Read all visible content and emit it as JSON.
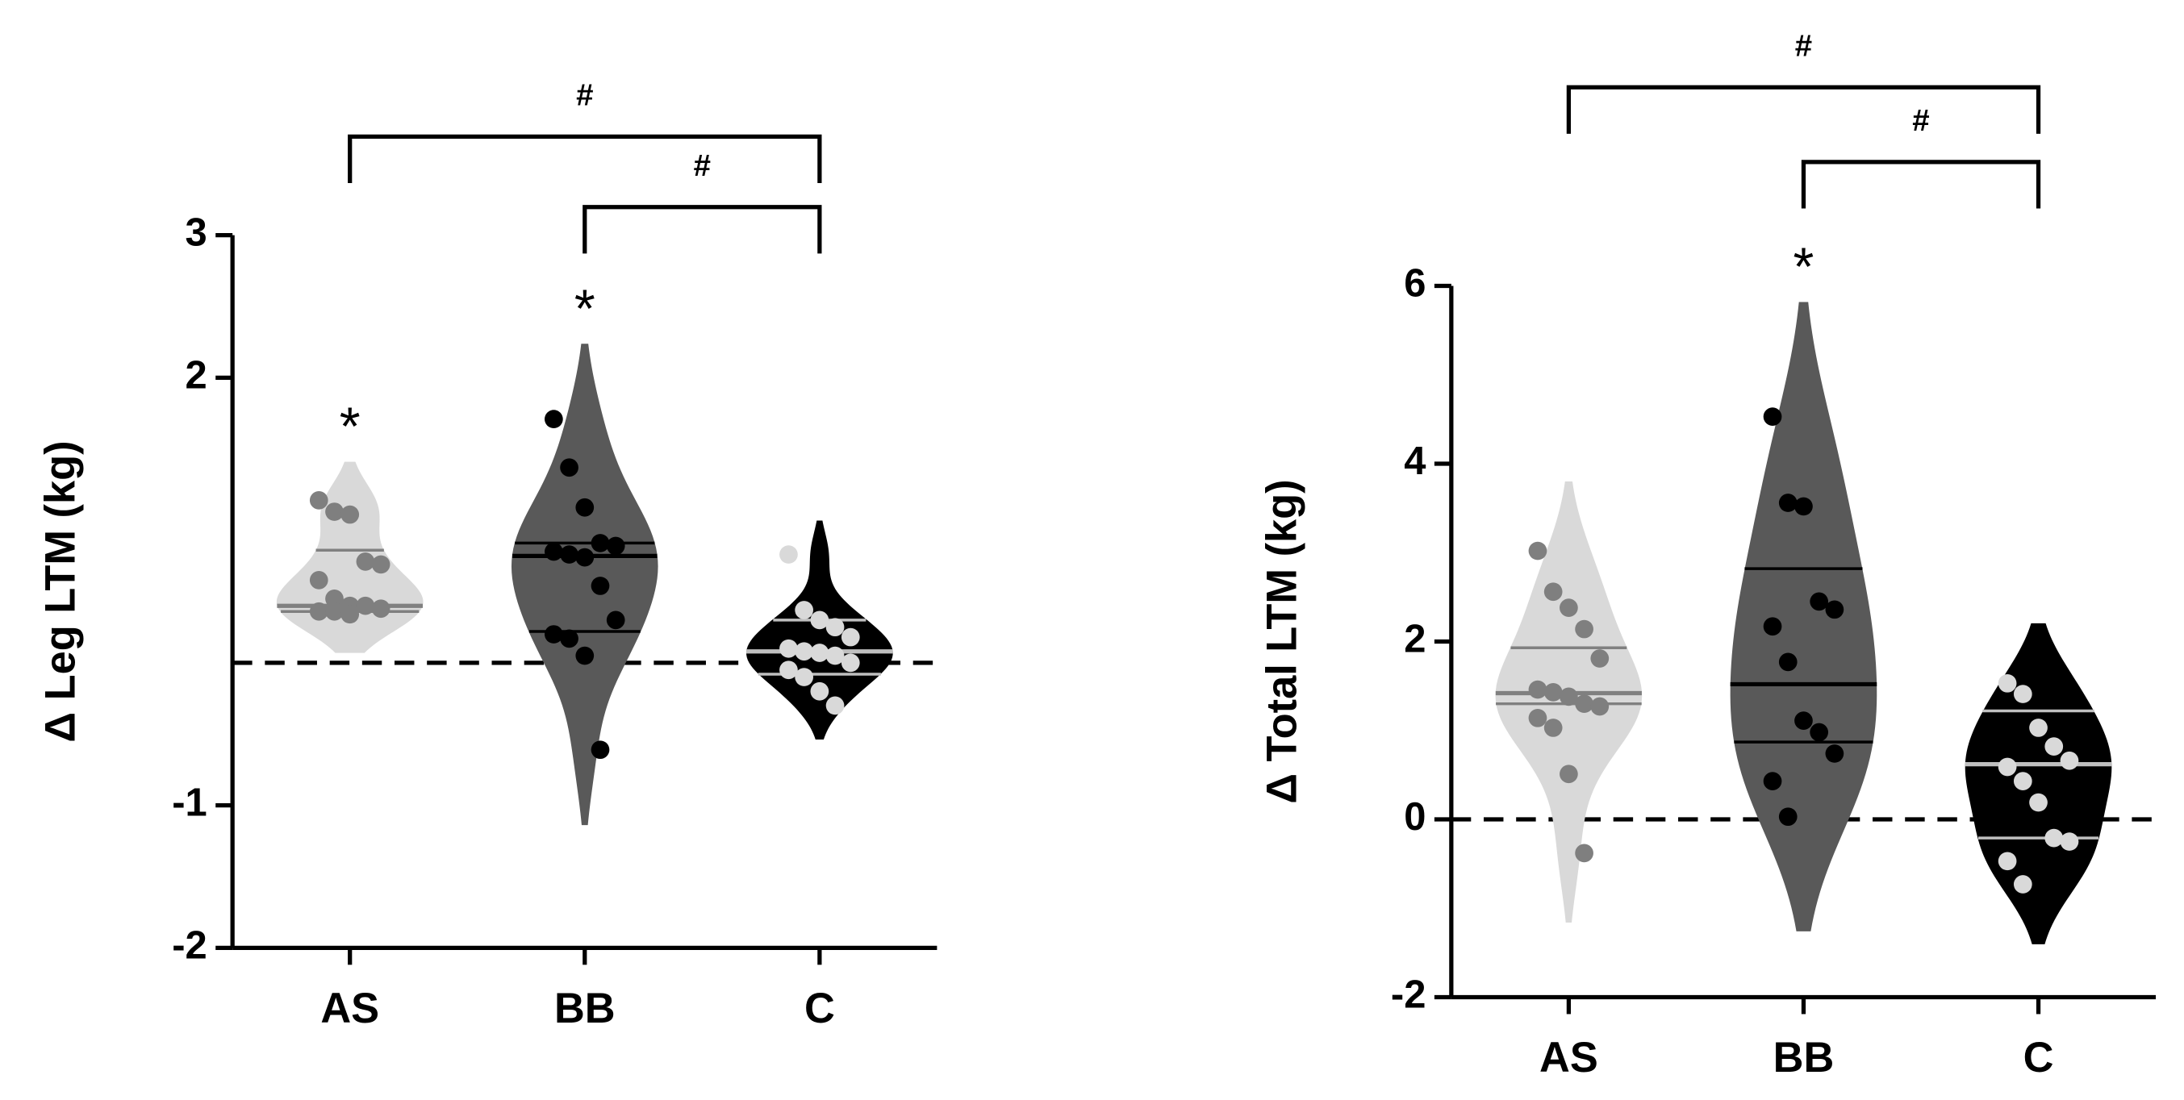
{
  "chart_data": [
    {
      "type": "violin",
      "y_label": "Δ Leg LTM (kg)",
      "categories": [
        "AS",
        "BB",
        "C"
      ],
      "ylim": [
        -2,
        3
      ],
      "yticks": [
        -2,
        -1,
        2,
        3
      ],
      "reference_line": 0,
      "groups": [
        {
          "values": [
            1.14,
            1.06,
            1.04,
            0.71,
            0.69,
            0.58,
            0.45,
            0.4,
            0.4,
            0.38,
            0.36,
            0.36,
            0.34
          ],
          "q1": 0.36,
          "median": 0.4,
          "q3": 0.79,
          "fill": "#d9d9d9",
          "point_color": "#7f7f7f",
          "line_color": "#808080"
        },
        {
          "values": [
            1.71,
            1.37,
            1.09,
            0.84,
            0.82,
            0.78,
            0.76,
            0.74,
            0.54,
            0.3,
            0.2,
            0.17,
            0.05,
            -0.61
          ],
          "q1": 0.22,
          "median": 0.75,
          "q3": 0.84,
          "fill": "#595959",
          "point_color": "#000000",
          "line_color": "#000000"
        },
        {
          "values": [
            0.76,
            0.37,
            0.3,
            0.25,
            0.18,
            0.1,
            0.08,
            0.07,
            0.05,
            0.0,
            -0.05,
            -0.1,
            -0.2,
            -0.3
          ],
          "q1": -0.08,
          "median": 0.08,
          "q3": 0.3,
          "fill": "#000000",
          "point_color": "#d9d9d9",
          "line_color": "#bfbfbf"
        }
      ],
      "stars": [
        "*",
        "*",
        null
      ],
      "brackets": [
        {
          "from": 0,
          "to": 2,
          "label": "#"
        },
        {
          "from": 1,
          "to": 2,
          "label": "#"
        }
      ]
    },
    {
      "type": "violin",
      "y_label": "Δ Total LTM (kg)",
      "categories": [
        "AS",
        "BB",
        "C"
      ],
      "ylim": [
        -2,
        6
      ],
      "yticks": [
        -2,
        0,
        2,
        4,
        6
      ],
      "reference_line": 0,
      "groups": [
        {
          "values": [
            3.02,
            2.56,
            2.38,
            2.14,
            1.81,
            1.46,
            1.43,
            1.38,
            1.3,
            1.27,
            1.14,
            1.03,
            0.51,
            -0.38
          ],
          "q1": 1.3,
          "median": 1.42,
          "q3": 1.93,
          "fill": "#d9d9d9",
          "point_color": "#7f7f7f",
          "line_color": "#808080"
        },
        {
          "values": [
            4.53,
            3.56,
            3.52,
            2.45,
            2.36,
            2.17,
            1.77,
            1.11,
            0.98,
            0.74,
            0.43,
            0.03
          ],
          "q1": 0.87,
          "median": 1.52,
          "q3": 2.82,
          "fill": "#595959",
          "point_color": "#000000",
          "line_color": "#000000"
        },
        {
          "values": [
            1.53,
            1.41,
            1.03,
            0.82,
            0.66,
            0.59,
            0.43,
            0.19,
            -0.21,
            -0.25,
            -0.47,
            -0.73
          ],
          "q1": -0.21,
          "median": 0.62,
          "q3": 1.22,
          "fill": "#000000",
          "point_color": "#d9d9d9",
          "line_color": "#bfbfbf"
        }
      ],
      "stars": [
        null,
        "*",
        null
      ],
      "brackets": [
        {
          "from": 0,
          "to": 2,
          "label": "#"
        },
        {
          "from": 1,
          "to": 2,
          "label": "#"
        }
      ]
    }
  ]
}
